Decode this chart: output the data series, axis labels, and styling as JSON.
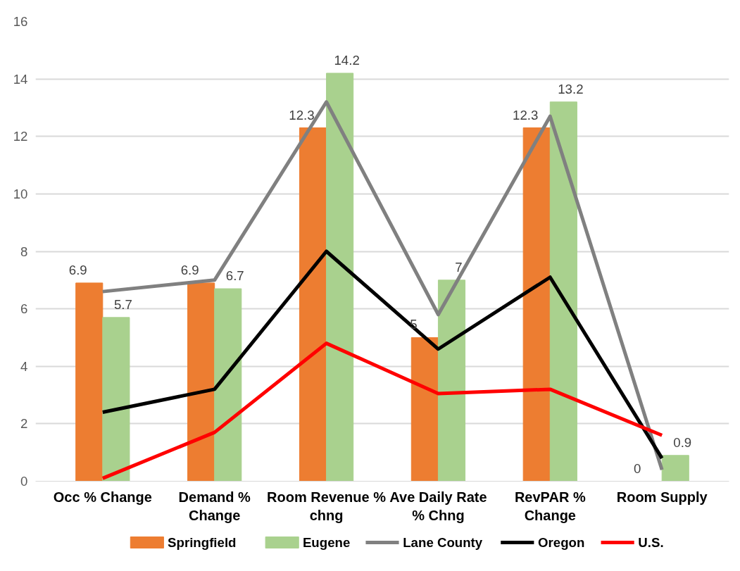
{
  "chart_data": {
    "type": "bar",
    "categories": [
      "Occ % Change",
      "Demand % Change",
      "Room Revenue % chng",
      "Ave Daily Rate % Chng",
      "RevPAR % Change",
      "Room Supply"
    ],
    "series": [
      {
        "name": "Springfield",
        "color": "#ed7d31",
        "values": [
          6.9,
          6.9,
          12.3,
          5,
          12.3,
          0
        ],
        "value_labels": [
          "6.9",
          "6.9",
          "12.3",
          "5",
          "12.3",
          "0"
        ]
      },
      {
        "name": "Eugene",
        "color": "#a9d18e",
        "values": [
          5.7,
          6.7,
          14.2,
          7,
          13.2,
          0.9
        ],
        "value_labels": [
          "5.7",
          "6.7",
          "14.2",
          "7",
          "13.2",
          "0.9"
        ]
      },
      {
        "name": "Lane County",
        "type": "line",
        "color": "#808080",
        "values": [
          6.6,
          7.0,
          13.2,
          5.8,
          12.7,
          0.4
        ]
      },
      {
        "name": "Oregon",
        "type": "line",
        "color": "#000000",
        "values": [
          2.4,
          3.2,
          8.0,
          4.6,
          7.1,
          0.8
        ]
      },
      {
        "name": "U.S.",
        "type": "line",
        "color": "#ff0000",
        "values": [
          0.1,
          1.7,
          4.8,
          3.05,
          3.2,
          1.6
        ]
      }
    ],
    "ylim": [
      0,
      16
    ],
    "yticks": [
      0,
      2,
      4,
      6,
      8,
      10,
      12,
      14,
      16
    ],
    "grid": "y",
    "legend": "bottom",
    "marker": "none",
    "line_style": "solid"
  }
}
